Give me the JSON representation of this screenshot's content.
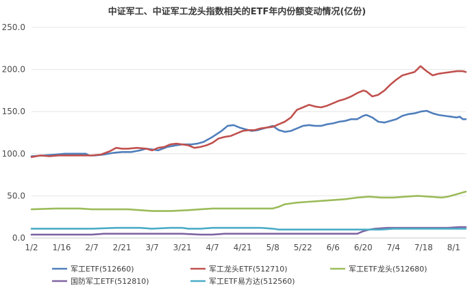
{
  "chart_data": {
    "type": "line",
    "title": "中证军工、中证军工龙头指数相关的ETF年内份额变动情况(亿份)",
    "ylim": [
      0,
      250
    ],
    "yticks": [
      "0.0",
      "50.0",
      "100.0",
      "150.0",
      "200.0",
      "250.0"
    ],
    "ytick_values": [
      0,
      50,
      100,
      150,
      200,
      250
    ],
    "x_count": 145,
    "xticks": [
      {
        "label": "1/2",
        "i": 0
      },
      {
        "label": "1/16",
        "i": 10
      },
      {
        "label": "2/7",
        "i": 20
      },
      {
        "label": "2/21",
        "i": 30
      },
      {
        "label": "3/7",
        "i": 40
      },
      {
        "label": "3/21",
        "i": 50
      },
      {
        "label": "4/7",
        "i": 60
      },
      {
        "label": "4/21",
        "i": 70
      },
      {
        "label": "5/8",
        "i": 80
      },
      {
        "label": "5/22",
        "i": 90
      },
      {
        "label": "6/6",
        "i": 100
      },
      {
        "label": "6/20",
        "i": 110
      },
      {
        "label": "7/4",
        "i": 120
      },
      {
        "label": "7/18",
        "i": 130
      },
      {
        "label": "8/1",
        "i": 140
      }
    ],
    "grid": true,
    "legend_position": "bottom",
    "series": [
      {
        "name": "军工ETF(512660)",
        "color": "#4f7ebb",
        "points": [
          [
            0,
            97
          ],
          [
            4,
            98
          ],
          [
            8,
            99
          ],
          [
            11,
            100
          ],
          [
            14,
            100
          ],
          [
            18,
            100
          ],
          [
            19,
            98
          ],
          [
            21,
            98
          ],
          [
            24,
            99
          ],
          [
            27,
            101
          ],
          [
            30,
            102
          ],
          [
            33,
            102
          ],
          [
            36,
            104
          ],
          [
            38,
            106
          ],
          [
            40,
            105
          ],
          [
            42,
            104
          ],
          [
            45,
            108
          ],
          [
            48,
            110
          ],
          [
            50,
            111
          ],
          [
            53,
            111
          ],
          [
            55,
            112
          ],
          [
            57,
            114
          ],
          [
            60,
            120
          ],
          [
            63,
            127
          ],
          [
            65,
            133
          ],
          [
            67,
            134
          ],
          [
            69,
            131
          ],
          [
            71,
            129
          ],
          [
            73,
            127
          ],
          [
            75,
            128
          ],
          [
            77,
            130
          ],
          [
            79,
            132
          ],
          [
            80,
            133
          ],
          [
            82,
            128
          ],
          [
            84,
            126
          ],
          [
            86,
            127
          ],
          [
            88,
            130
          ],
          [
            90,
            133
          ],
          [
            92,
            134
          ],
          [
            94,
            133
          ],
          [
            96,
            133
          ],
          [
            98,
            135
          ],
          [
            100,
            136
          ],
          [
            102,
            138
          ],
          [
            104,
            139
          ],
          [
            106,
            141
          ],
          [
            108,
            141
          ],
          [
            110,
            145
          ],
          [
            111,
            146
          ],
          [
            113,
            143
          ],
          [
            115,
            138
          ],
          [
            117,
            137
          ],
          [
            119,
            139
          ],
          [
            121,
            141
          ],
          [
            123,
            145
          ],
          [
            125,
            147
          ],
          [
            127,
            148
          ],
          [
            129,
            150
          ],
          [
            131,
            151
          ],
          [
            133,
            148
          ],
          [
            135,
            146
          ],
          [
            137,
            145
          ],
          [
            139,
            144
          ],
          [
            141,
            143
          ],
          [
            142,
            144
          ],
          [
            143,
            141
          ],
          [
            144,
            141
          ]
        ]
      },
      {
        "name": "军工龙头ETF(512710)",
        "color": "#c0504d",
        "points": [
          [
            0,
            96
          ],
          [
            3,
            98
          ],
          [
            6,
            97
          ],
          [
            9,
            98
          ],
          [
            12,
            98
          ],
          [
            15,
            98
          ],
          [
            18,
            98
          ],
          [
            20,
            98
          ],
          [
            23,
            99
          ],
          [
            26,
            103
          ],
          [
            28,
            107
          ],
          [
            30,
            106
          ],
          [
            32,
            106
          ],
          [
            35,
            107
          ],
          [
            38,
            106
          ],
          [
            40,
            104
          ],
          [
            42,
            107
          ],
          [
            44,
            108
          ],
          [
            46,
            111
          ],
          [
            48,
            112
          ],
          [
            50,
            111
          ],
          [
            52,
            110
          ],
          [
            54,
            107
          ],
          [
            56,
            108
          ],
          [
            58,
            110
          ],
          [
            60,
            113
          ],
          [
            62,
            118
          ],
          [
            64,
            120
          ],
          [
            66,
            121
          ],
          [
            68,
            124
          ],
          [
            70,
            127
          ],
          [
            72,
            128
          ],
          [
            74,
            128
          ],
          [
            76,
            130
          ],
          [
            78,
            131
          ],
          [
            80,
            132
          ],
          [
            82,
            135
          ],
          [
            84,
            138
          ],
          [
            86,
            143
          ],
          [
            88,
            152
          ],
          [
            90,
            155
          ],
          [
            92,
            158
          ],
          [
            94,
            156
          ],
          [
            96,
            155
          ],
          [
            98,
            157
          ],
          [
            100,
            160
          ],
          [
            102,
            163
          ],
          [
            104,
            165
          ],
          [
            106,
            168
          ],
          [
            108,
            172
          ],
          [
            110,
            175
          ],
          [
            111,
            174
          ],
          [
            113,
            168
          ],
          [
            115,
            170
          ],
          [
            117,
            175
          ],
          [
            119,
            182
          ],
          [
            121,
            188
          ],
          [
            123,
            193
          ],
          [
            125,
            195
          ],
          [
            127,
            197
          ],
          [
            129,
            204
          ],
          [
            131,
            198
          ],
          [
            133,
            193
          ],
          [
            135,
            195
          ],
          [
            137,
            196
          ],
          [
            139,
            197
          ],
          [
            141,
            198
          ],
          [
            143,
            198
          ],
          [
            144,
            197
          ]
        ]
      },
      {
        "name": "军工ETF龙头(512680)",
        "color": "#9bbb59",
        "points": [
          [
            0,
            34
          ],
          [
            8,
            35
          ],
          [
            16,
            35
          ],
          [
            20,
            34
          ],
          [
            26,
            34
          ],
          [
            32,
            34
          ],
          [
            36,
            33
          ],
          [
            40,
            32
          ],
          [
            46,
            32
          ],
          [
            52,
            33
          ],
          [
            56,
            34
          ],
          [
            60,
            35
          ],
          [
            64,
            35
          ],
          [
            68,
            35
          ],
          [
            72,
            35
          ],
          [
            76,
            35
          ],
          [
            80,
            35
          ],
          [
            82,
            37
          ],
          [
            84,
            40
          ],
          [
            86,
            41
          ],
          [
            88,
            42
          ],
          [
            92,
            43
          ],
          [
            96,
            44
          ],
          [
            100,
            45
          ],
          [
            104,
            46
          ],
          [
            108,
            48
          ],
          [
            112,
            49
          ],
          [
            116,
            48
          ],
          [
            120,
            48
          ],
          [
            124,
            49
          ],
          [
            128,
            50
          ],
          [
            132,
            49
          ],
          [
            136,
            48
          ],
          [
            138,
            49
          ],
          [
            140,
            51
          ],
          [
            142,
            53
          ],
          [
            144,
            55
          ]
        ]
      },
      {
        "name": "国防军工ETF(512810)",
        "color": "#8064a2",
        "points": [
          [
            0,
            4
          ],
          [
            10,
            4
          ],
          [
            20,
            4
          ],
          [
            24,
            5
          ],
          [
            30,
            5
          ],
          [
            40,
            5
          ],
          [
            50,
            5
          ],
          [
            56,
            4
          ],
          [
            60,
            4
          ],
          [
            64,
            5
          ],
          [
            70,
            5
          ],
          [
            80,
            5
          ],
          [
            90,
            5
          ],
          [
            100,
            5
          ],
          [
            108,
            5
          ],
          [
            110,
            8
          ],
          [
            112,
            10
          ],
          [
            114,
            11
          ],
          [
            118,
            12
          ],
          [
            122,
            12
          ],
          [
            126,
            12
          ],
          [
            130,
            12
          ],
          [
            134,
            12
          ],
          [
            138,
            12
          ],
          [
            142,
            13
          ],
          [
            144,
            13
          ]
        ]
      },
      {
        "name": "军工ETF易方达(512560)",
        "color": "#4bacc6",
        "points": [
          [
            0,
            11
          ],
          [
            10,
            11
          ],
          [
            20,
            11
          ],
          [
            28,
            12
          ],
          [
            36,
            12
          ],
          [
            40,
            11
          ],
          [
            46,
            12
          ],
          [
            50,
            12
          ],
          [
            52,
            11
          ],
          [
            56,
            11
          ],
          [
            60,
            12
          ],
          [
            64,
            12
          ],
          [
            70,
            12
          ],
          [
            76,
            12
          ],
          [
            80,
            11
          ],
          [
            82,
            10
          ],
          [
            86,
            10
          ],
          [
            90,
            10
          ],
          [
            96,
            10
          ],
          [
            100,
            10
          ],
          [
            110,
            10
          ],
          [
            116,
            10
          ],
          [
            120,
            11
          ],
          [
            126,
            11
          ],
          [
            130,
            11
          ],
          [
            136,
            11
          ],
          [
            140,
            11
          ],
          [
            144,
            11
          ]
        ]
      }
    ]
  }
}
